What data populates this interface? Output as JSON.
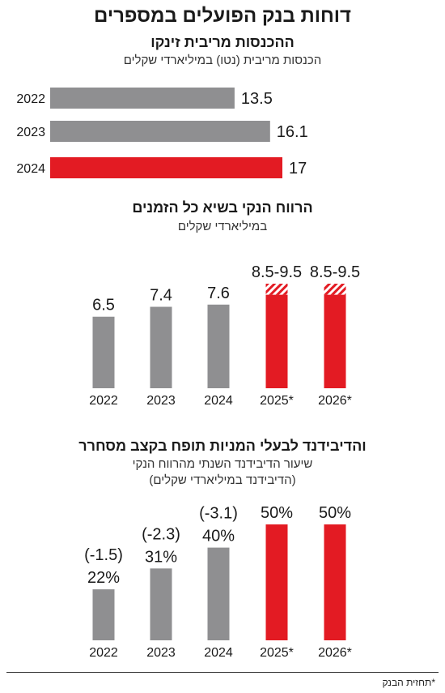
{
  "title": "דוחות בנק הפועלים במספרים",
  "footnote": "*תחזית הבנק",
  "colors": {
    "actual": "#8f8f91",
    "forecast": "#e31b23",
    "text": "#1a1a1a"
  },
  "chart_data": [
    {
      "type": "bar",
      "orientation": "horizontal",
      "title": "ההכנסות מריבית זינקו",
      "subtitle": "הכנסות מריבית (נטו) במיליארדי שקלים",
      "categories": [
        "2022",
        "2023",
        "2024"
      ],
      "values": [
        13.5,
        16.1,
        17
      ],
      "value_labels": [
        "13.5",
        "16.1",
        "17"
      ],
      "highlight": [
        false,
        false,
        true
      ]
    },
    {
      "type": "bar",
      "title": "הרווח הנקי בשיא כל הזמנים",
      "subtitle": "במיליארדי שקלים",
      "categories": [
        "2022",
        "2023",
        "2024",
        "2025*",
        "2026*"
      ],
      "values": [
        6.5,
        7.4,
        7.6,
        8.5,
        8.5
      ],
      "range_high": [
        null,
        null,
        null,
        9.5,
        9.5
      ],
      "value_labels": [
        "6.5",
        "7.4",
        "7.6",
        "8.5-9.5",
        "8.5-9.5"
      ],
      "forecast": [
        false,
        false,
        false,
        true,
        true
      ]
    },
    {
      "type": "bar",
      "title": "והדיבידנד לבעלי המניות תופח בקצב מסחרר",
      "subtitle": "שיעור הדיבידנד השנתי מהרווח הנקי",
      "subtitle2": "(הדיבידנד במיליארדי שקלים)",
      "categories": [
        "2022",
        "2023",
        "2024",
        "2025*",
        "2026*"
      ],
      "values": [
        22,
        31,
        40,
        50,
        50
      ],
      "value_labels": [
        "22%",
        "31%",
        "40%",
        "50%",
        "50%"
      ],
      "dividend_labels": [
        "(-1.5)",
        "(-2.3)",
        "(-3.1)",
        null,
        null
      ],
      "forecast": [
        false,
        false,
        false,
        true,
        true
      ]
    }
  ]
}
